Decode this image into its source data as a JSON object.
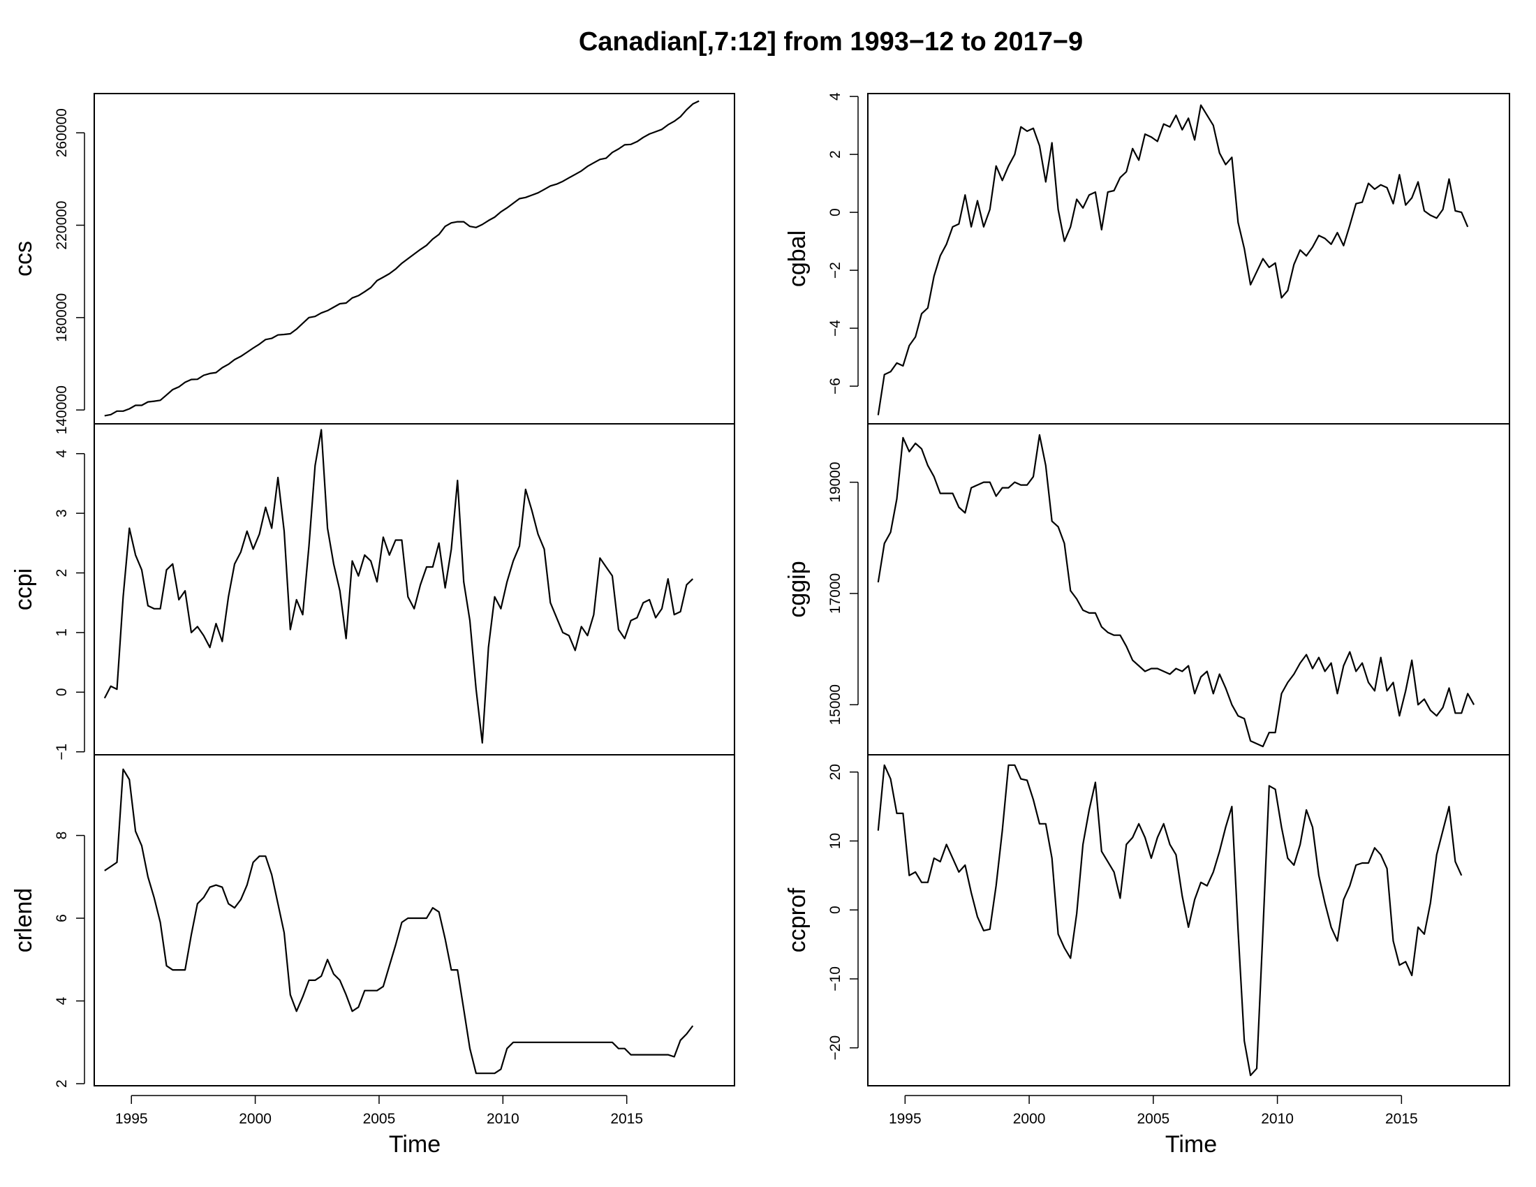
{
  "title": "Canadian[,7:12] from 1993−12 to 2017−9",
  "colors": {
    "line": "#000000",
    "axis": "#000000",
    "background": "#ffffff"
  },
  "chart_data": {
    "type": "line",
    "time_start": 1993.917,
    "time_step": 0.25,
    "x_ticks": [
      1995,
      2000,
      2005,
      2010,
      2015
    ],
    "xlabel": "Time",
    "grid": false,
    "panels": [
      {
        "name": "ccs",
        "column": "left",
        "row": 0,
        "ylim": [
          134000,
          277000
        ],
        "yticks": [
          140000,
          180000,
          220000,
          260000
        ],
        "values": [
          137500,
          138000,
          139500,
          139500,
          140500,
          142000,
          142000,
          143500,
          143800,
          144200,
          146500,
          148800,
          150000,
          152000,
          153200,
          153300,
          155000,
          155800,
          156200,
          158300,
          159800,
          161800,
          163200,
          165000,
          166800,
          168500,
          170500,
          171000,
          172500,
          172700,
          173000,
          175000,
          177500,
          180000,
          180500,
          182000,
          183000,
          184500,
          186000,
          186300,
          188500,
          189500,
          191200,
          193000,
          196000,
          197500,
          199000,
          201000,
          203500,
          205500,
          207500,
          209500,
          211300,
          214000,
          216000,
          219500,
          221000,
          221500,
          221500,
          219500,
          219000,
          220300,
          222000,
          223500,
          225800,
          227500,
          229500,
          231500,
          232000,
          233000,
          234000,
          235500,
          237000,
          237800,
          239000,
          240500,
          242000,
          243500,
          245500,
          247000,
          248500,
          249000,
          251500,
          253000,
          254800,
          255000,
          256200,
          258000,
          259500,
          260500,
          261500,
          263500,
          265000,
          267000,
          270000,
          272500,
          273800
        ]
      },
      {
        "name": "ccpi",
        "column": "left",
        "row": 1,
        "ylim": [
          -1.05,
          4.5
        ],
        "yticks": [
          -1,
          0,
          1,
          2,
          3,
          4
        ],
        "values": [
          -0.1,
          0.1,
          0.05,
          1.6,
          2.75,
          2.3,
          2.05,
          1.45,
          1.4,
          1.4,
          2.05,
          2.15,
          1.55,
          1.7,
          1.0,
          1.1,
          0.95,
          0.75,
          1.15,
          0.85,
          1.6,
          2.15,
          2.35,
          2.7,
          2.4,
          2.65,
          3.1,
          2.75,
          3.6,
          2.7,
          1.05,
          1.55,
          1.3,
          2.45,
          3.8,
          4.4,
          2.75,
          2.15,
          1.7,
          0.9,
          2.2,
          1.95,
          2.3,
          2.2,
          1.85,
          2.6,
          2.3,
          2.55,
          2.55,
          1.6,
          1.4,
          1.8,
          2.1,
          2.1,
          2.5,
          1.75,
          2.4,
          3.55,
          1.85,
          1.2,
          0.05,
          -0.85,
          0.75,
          1.6,
          1.4,
          1.85,
          2.2,
          2.45,
          3.4,
          3.05,
          2.65,
          2.4,
          1.5,
          1.25,
          1.0,
          0.95,
          0.7,
          1.1,
          0.95,
          1.3,
          2.25,
          2.1,
          1.95,
          1.05,
          0.9,
          1.2,
          1.25,
          1.5,
          1.55,
          1.25,
          1.4,
          1.9,
          1.3,
          1.35,
          1.8,
          1.9
        ]
      },
      {
        "name": "crlend",
        "column": "left",
        "row": 2,
        "ylim": [
          1.95,
          9.95
        ],
        "yticks": [
          2,
          4,
          6,
          8
        ],
        "values": [
          7.15,
          7.25,
          7.35,
          9.6,
          9.35,
          8.1,
          7.75,
          7.0,
          6.5,
          5.9,
          4.85,
          4.75,
          4.75,
          4.75,
          5.6,
          6.35,
          6.5,
          6.75,
          6.8,
          6.75,
          6.35,
          6.25,
          6.45,
          6.8,
          7.35,
          7.5,
          7.5,
          7.05,
          6.35,
          5.65,
          4.15,
          3.75,
          4.1,
          4.5,
          4.5,
          4.6,
          5.0,
          4.65,
          4.5,
          4.15,
          3.75,
          3.85,
          4.25,
          4.25,
          4.25,
          4.35,
          4.85,
          5.35,
          5.9,
          6.0,
          6.0,
          6.0,
          6.0,
          6.25,
          6.15,
          5.5,
          4.75,
          4.75,
          3.8,
          2.85,
          2.25,
          2.25,
          2.25,
          2.25,
          2.35,
          2.85,
          3.0,
          3.0,
          3.0,
          3.0,
          3.0,
          3.0,
          3.0,
          3.0,
          3.0,
          3.0,
          3.0,
          3.0,
          3.0,
          3.0,
          3.0,
          3.0,
          3.0,
          2.85,
          2.85,
          2.7,
          2.7,
          2.7,
          2.7,
          2.7,
          2.7,
          2.7,
          2.65,
          3.05,
          3.2,
          3.4
        ]
      },
      {
        "name": "cgbal",
        "column": "right",
        "row": 0,
        "ylim": [
          -7.3,
          4.1
        ],
        "yticks": [
          -6,
          -4,
          -2,
          0,
          2,
          4
        ],
        "values": [
          -7.0,
          -5.6,
          -5.5,
          -5.2,
          -5.3,
          -4.6,
          -4.3,
          -3.5,
          -3.3,
          -2.2,
          -1.5,
          -1.1,
          -0.5,
          -0.4,
          0.6,
          -0.5,
          0.4,
          -0.5,
          0.1,
          1.6,
          1.1,
          1.6,
          2.0,
          2.95,
          2.8,
          2.9,
          2.3,
          1.05,
          2.4,
          0.1,
          -1.0,
          -0.5,
          0.45,
          0.15,
          0.6,
          0.7,
          -0.6,
          0.7,
          0.75,
          1.2,
          1.4,
          2.2,
          1.8,
          2.7,
          2.6,
          2.45,
          3.05,
          2.95,
          3.35,
          2.85,
          3.25,
          2.5,
          3.7,
          3.35,
          3.0,
          2.05,
          1.65,
          1.9,
          -0.35,
          -1.25,
          -2.5,
          -2.05,
          -1.6,
          -1.9,
          -1.75,
          -2.95,
          -2.7,
          -1.8,
          -1.3,
          -1.5,
          -1.2,
          -0.8,
          -0.9,
          -1.1,
          -0.7,
          -1.15,
          -0.45,
          0.3,
          0.35,
          1.0,
          0.8,
          0.95,
          0.85,
          0.3,
          1.3,
          0.25,
          0.5,
          1.05,
          0.05,
          -0.1,
          -0.2,
          0.1,
          1.15,
          0.05,
          0.0,
          -0.5
        ]
      },
      {
        "name": "cggip",
        "column": "right",
        "row": 1,
        "ylim": [
          14100,
          20050
        ],
        "yticks": [
          15000,
          17000,
          19000
        ],
        "values": [
          17200,
          17900,
          18100,
          18700,
          19800,
          19550,
          19700,
          19600,
          19300,
          19100,
          18800,
          18800,
          18800,
          18550,
          18450,
          18900,
          18950,
          19000,
          19000,
          18750,
          18900,
          18900,
          19000,
          18950,
          18950,
          19100,
          19850,
          19300,
          18300,
          18200,
          17900,
          17050,
          16900,
          16700,
          16650,
          16650,
          16400,
          16300,
          16250,
          16250,
          16050,
          15800,
          15700,
          15600,
          15650,
          15650,
          15600,
          15550,
          15650,
          15600,
          15700,
          15200,
          15500,
          15600,
          15200,
          15550,
          15300,
          15000,
          14800,
          14750,
          14350,
          14300,
          14250,
          14500,
          14500,
          15200,
          15400,
          15550,
          15750,
          15900,
          15650,
          15850,
          15600,
          15750,
          15200,
          15700,
          15950,
          15600,
          15750,
          15400,
          15250,
          15850,
          15250,
          15400,
          14800,
          15250,
          15800,
          15000,
          15100,
          14900,
          14800,
          14950,
          15300,
          14850,
          14850,
          15200,
          15000
        ]
      },
      {
        "name": "ccprof",
        "column": "right",
        "row": 2,
        "ylim": [
          -25.5,
          22.5
        ],
        "yticks": [
          -20,
          -10,
          0,
          10,
          20
        ],
        "values": [
          11.5,
          21,
          19,
          14,
          14,
          5,
          5.5,
          4,
          4,
          7.5,
          7,
          9.5,
          7.5,
          5.5,
          6.5,
          2.5,
          -1,
          -3,
          -2.8,
          3.5,
          11.5,
          21,
          21,
          19,
          18.8,
          16,
          12.5,
          12.5,
          7.5,
          -3.5,
          -5.5,
          -7,
          -0.5,
          9.5,
          14.5,
          18.5,
          8.5,
          7,
          5.5,
          1.7,
          9.5,
          10.5,
          12.5,
          10.5,
          7.5,
          10.5,
          12.5,
          9.5,
          8,
          2,
          -2.5,
          1.5,
          4,
          3.5,
          5.5,
          8.5,
          12,
          15,
          -3,
          -19,
          -24,
          -23,
          -3,
          18,
          17.5,
          12,
          7.5,
          6.5,
          9.5,
          14.5,
          12,
          5,
          1,
          -2.5,
          -4.5,
          1.5,
          3.5,
          6.5,
          6.8,
          6.8,
          9,
          8,
          6,
          -4.5,
          -8,
          -7.5,
          -9.5,
          -2.5,
          -3.5,
          1,
          8,
          11.5,
          15,
          7,
          5
        ]
      }
    ]
  }
}
